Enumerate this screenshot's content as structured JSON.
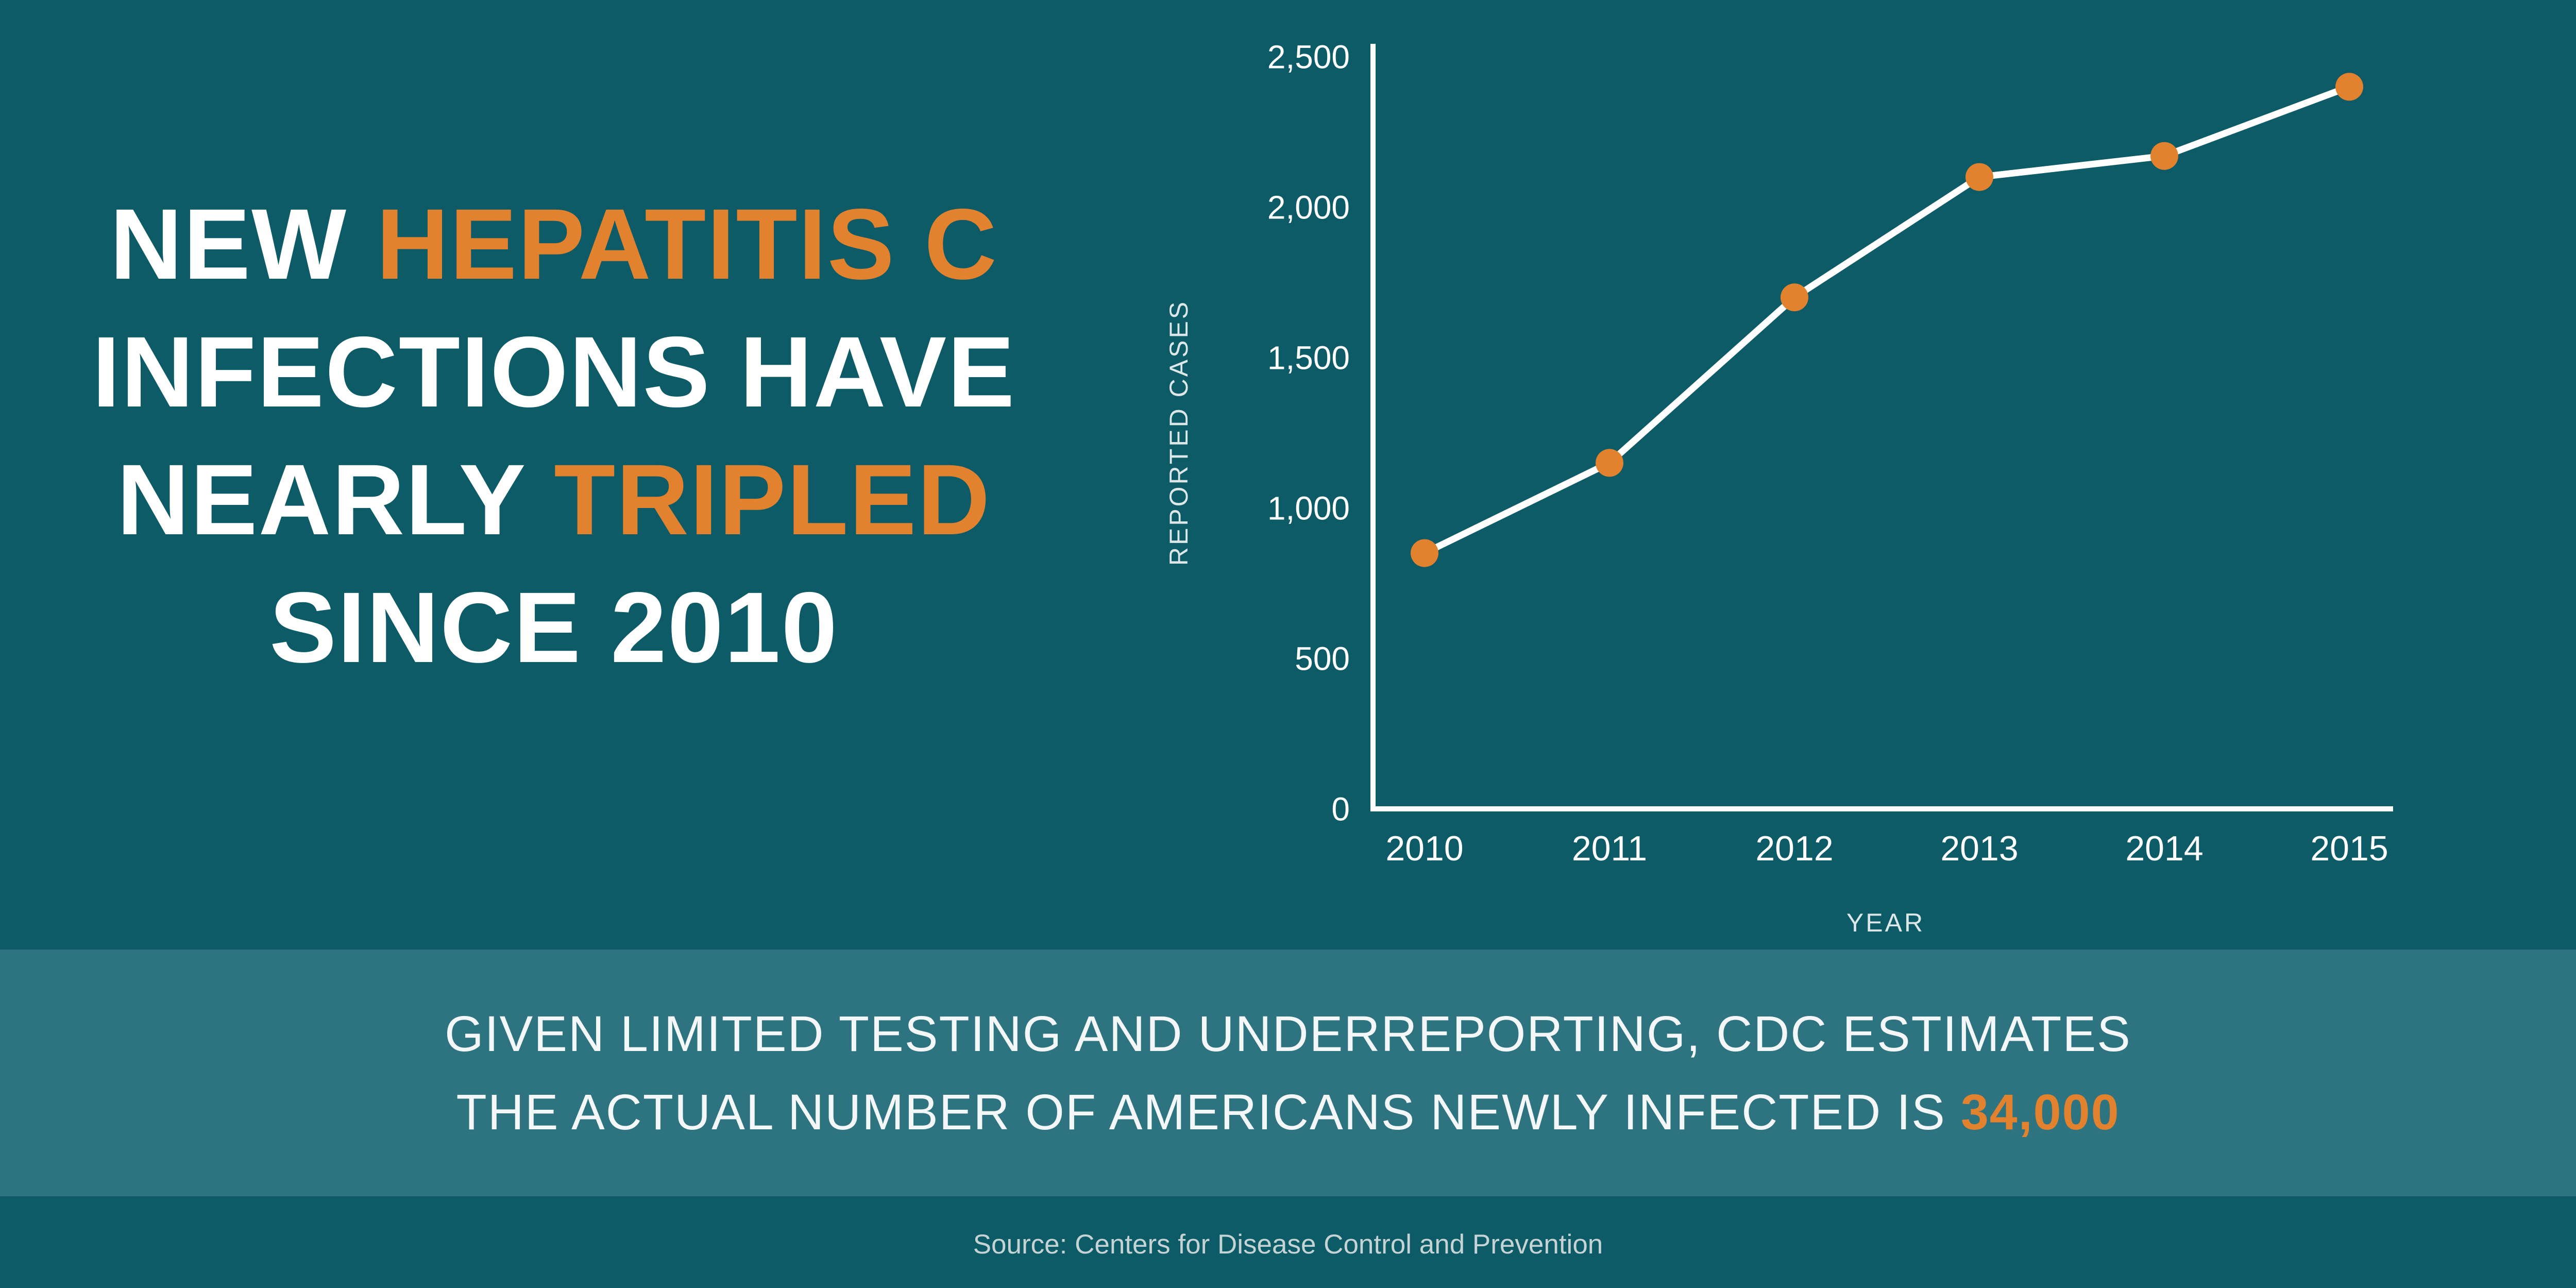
{
  "colors": {
    "background": "#0c5b66",
    "band": "#2d7380",
    "accent": "#e2822e",
    "text": "#ffffff",
    "muted_text": "#c5d3d5",
    "line": "#ffffff",
    "marker": "#e2822e"
  },
  "headline": {
    "lines": [
      [
        {
          "text": "NEW ",
          "accent": false
        },
        {
          "text": "HEPATITIS C",
          "accent": true
        }
      ],
      [
        {
          "text": "INFECTIONS HAVE",
          "accent": false
        }
      ],
      [
        {
          "text": "NEARLY ",
          "accent": false
        },
        {
          "text": "TRIPLED",
          "accent": true
        }
      ],
      [
        {
          "text": "SINCE 2010",
          "accent": false
        }
      ]
    ]
  },
  "chart_data": {
    "type": "line",
    "title": "",
    "x": [
      "2010",
      "2011",
      "2012",
      "2013",
      "2014",
      "2015"
    ],
    "series": [
      {
        "name": "Reported cases",
        "values": [
          850,
          1150,
          1700,
          2100,
          2170,
          2400
        ]
      }
    ],
    "xlabel": "YEAR",
    "ylabel": "REPORTED CASES",
    "ylim": [
      0,
      2500
    ],
    "yticks": [
      0,
      500,
      1000,
      1500,
      2000,
      2500
    ],
    "ytick_labels": [
      "0",
      "500",
      "1,000",
      "1,500",
      "2,000",
      "2,500"
    ],
    "grid": false,
    "legend_position": "none",
    "line_color": "#ffffff",
    "marker_color": "#e2822e"
  },
  "footer": {
    "line1": "GIVEN LIMITED TESTING AND UNDERREPORTING, CDC ESTIMATES",
    "line2_prefix": "THE ACTUAL NUMBER OF AMERICANS NEWLY INFECTED IS ",
    "line2_accent": "34,000",
    "source": "Source: Centers for Disease Control and Prevention"
  }
}
